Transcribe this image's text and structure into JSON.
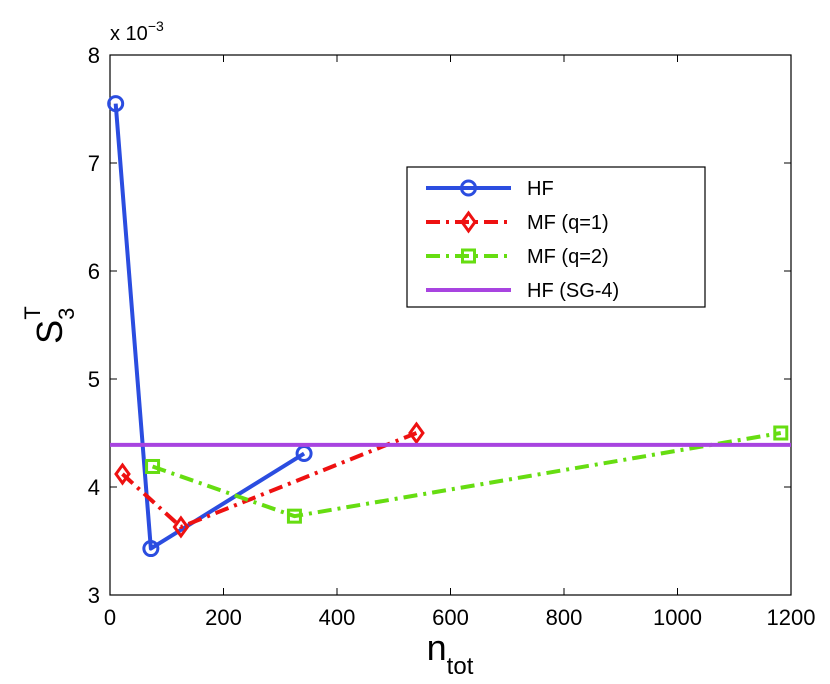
{
  "chart_data": {
    "type": "line",
    "title": "",
    "xlabel": {
      "base": "n",
      "sub": "tot"
    },
    "ylabel": {
      "base": "S",
      "sub": "3",
      "sup": "T"
    },
    "y_exponent": "x 10",
    "y_exponent_power": "−3",
    "xlim": [
      0,
      1200
    ],
    "ylim": [
      3,
      8
    ],
    "xticks": [
      0,
      200,
      400,
      600,
      800,
      1000,
      1200
    ],
    "yticks": [
      3,
      4,
      5,
      6,
      7,
      8
    ],
    "xtick_labels": [
      "0",
      "200",
      "400",
      "600",
      "800",
      "1000",
      "1200"
    ],
    "ytick_labels": [
      "3",
      "4",
      "5",
      "6",
      "7",
      "8"
    ],
    "legend_position": "upper-right",
    "series": [
      {
        "name": "HF",
        "color": "#2b4de0",
        "marker": "circle",
        "dash": "solid",
        "x": [
          10,
          72,
          342
        ],
        "y": [
          7.55,
          3.43,
          4.31
        ]
      },
      {
        "name": "MF (q=1)",
        "color": "#ee1111",
        "marker": "diamond",
        "dash": "dashdot",
        "x": [
          22,
          125,
          540
        ],
        "y": [
          4.12,
          3.63,
          4.5
        ]
      },
      {
        "name": "MF (q=2)",
        "color": "#66dd11",
        "marker": "square",
        "dash": "dashdot",
        "x": [
          75,
          325,
          1182
        ],
        "y": [
          4.19,
          3.73,
          4.5
        ]
      },
      {
        "name": "HF (SG-4)",
        "color": "#a844e0",
        "marker": "none",
        "dash": "solid",
        "x": [
          0,
          1200
        ],
        "y": [
          4.39,
          4.39
        ]
      }
    ]
  }
}
